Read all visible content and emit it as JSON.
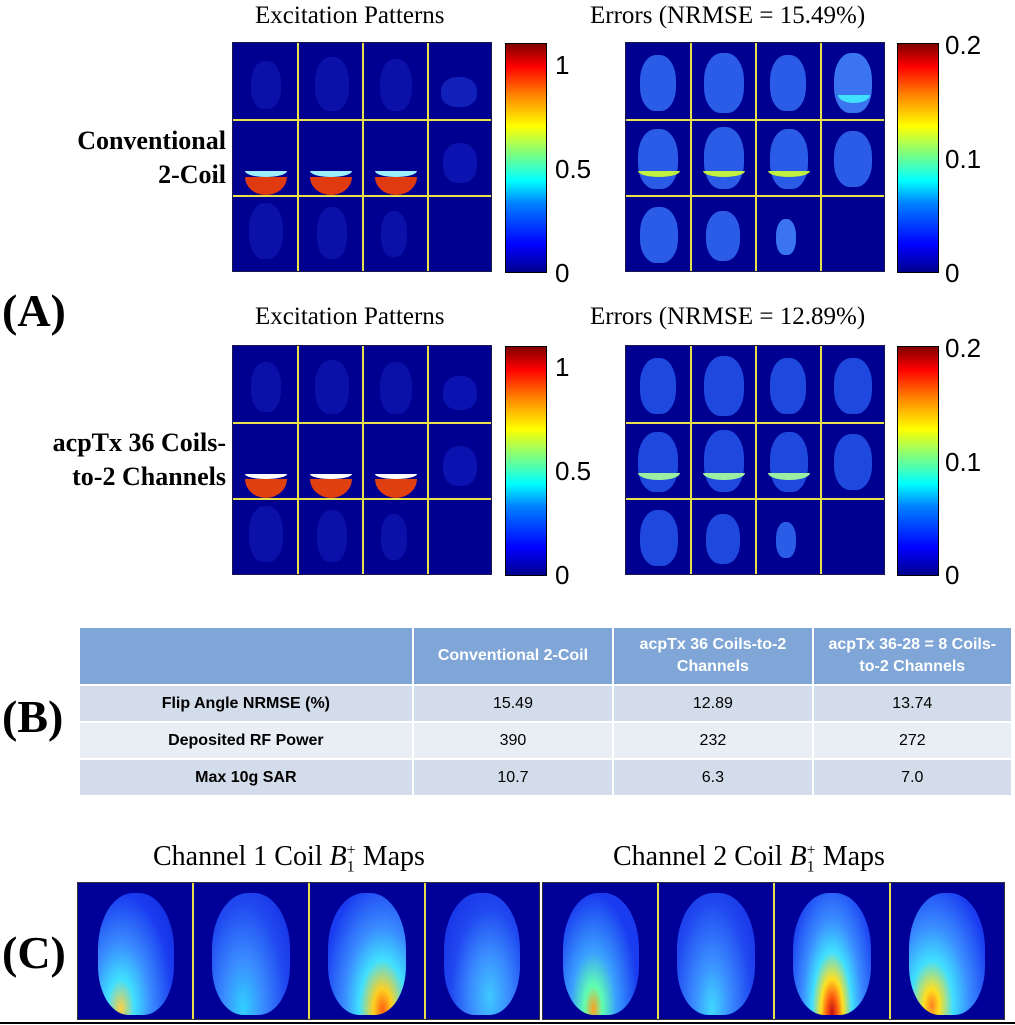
{
  "panel_labels": {
    "a": "(A)",
    "b": "(B)",
    "c": "(C)"
  },
  "panel_a": {
    "rows": [
      {
        "row_label_line1": "Conventional",
        "row_label_line2": "2-Coil",
        "excitation_title": "Excitation Patterns",
        "error_title": "Errors (NRMSE = 15.49%)",
        "excitation_colorbar": {
          "max": "1",
          "mid": "0.5",
          "min": "0"
        },
        "error_colorbar": {
          "max": "0.2",
          "mid": "0.1",
          "min": "0"
        }
      },
      {
        "row_label_line1": "acpTx 36 Coils-",
        "row_label_line2": "to-2 Channels",
        "excitation_title": "Excitation Patterns",
        "error_title": "Errors (NRMSE = 12.89%)",
        "excitation_colorbar": {
          "max": "1",
          "mid": "0.5",
          "min": "0"
        },
        "error_colorbar": {
          "max": "0.2",
          "mid": "0.1",
          "min": "0"
        }
      }
    ]
  },
  "panel_b": {
    "columns": [
      "",
      "Conventional 2-Coil",
      "acpTx 36 Coils-to-2 Channels",
      "acpTx 36-28 = 8 Coils-to-2 Channels"
    ],
    "rows": [
      {
        "label": "Flip Angle NRMSE (%)",
        "values": [
          "15.49",
          "12.89",
          "13.74"
        ]
      },
      {
        "label": "Deposited RF Power",
        "values": [
          "390",
          "232",
          "272"
        ]
      },
      {
        "label": "Max 10g SAR",
        "values": [
          "10.7",
          "6.3",
          "7.0"
        ]
      }
    ]
  },
  "panel_c": {
    "channel1_title": "Channel 1 Coil",
    "channel2_title": "Channel 2 Coil",
    "symbol": "B",
    "subscript": "1",
    "superscript": "+",
    "maps_word": "Maps"
  },
  "colors": {
    "background_map": "#000090",
    "grid_line": "#e8e04a",
    "table_header": "#7fa6d6",
    "table_row_dark": "#d3dcea",
    "table_row_light": "#e9eef5"
  }
}
